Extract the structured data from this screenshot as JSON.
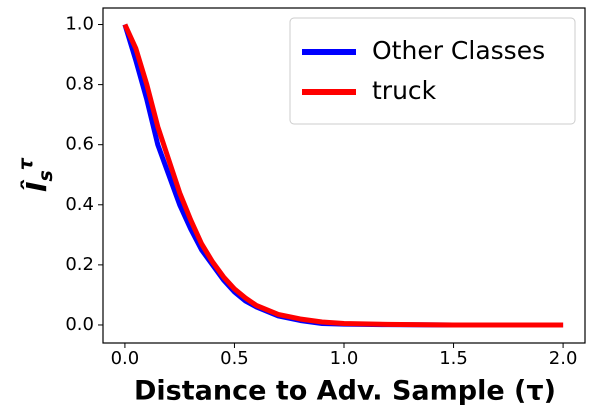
{
  "chart_data": {
    "type": "line",
    "xlabel": "Distance to Adv. Sample (τ)",
    "ylabel": {
      "base": "Î",
      "sub": "s",
      "sup": "τ"
    },
    "x": [
      0,
      0.05,
      0.1,
      0.15,
      0.2,
      0.25,
      0.3,
      0.35,
      0.4,
      0.45,
      0.5,
      0.55,
      0.6,
      0.7,
      0.8,
      0.9,
      1.0,
      1.2,
      1.5,
      2.0
    ],
    "series": [
      {
        "name": "Other Classes",
        "color": "#0000ff",
        "values": [
          1.0,
          0.88,
          0.75,
          0.6,
          0.5,
          0.4,
          0.32,
          0.25,
          0.2,
          0.15,
          0.11,
          0.08,
          0.06,
          0.03,
          0.015,
          0.005,
          0.003,
          0.001,
          0,
          0
        ]
      },
      {
        "name": "truck",
        "color": "#ff0000",
        "values": [
          1.0,
          0.92,
          0.8,
          0.66,
          0.55,
          0.44,
          0.35,
          0.27,
          0.21,
          0.16,
          0.12,
          0.09,
          0.065,
          0.035,
          0.02,
          0.01,
          0.005,
          0.002,
          0,
          0
        ]
      }
    ],
    "xlim": [
      -0.1,
      2.1
    ],
    "ylim": [
      -0.06,
      1.055
    ],
    "xticks": [
      {
        "value": 0,
        "label": "0.0"
      },
      {
        "value": 0.5,
        "label": "0.5"
      },
      {
        "value": 1,
        "label": "1.0"
      },
      {
        "value": 1.5,
        "label": "1.5"
      },
      {
        "value": 2,
        "label": "2.0"
      }
    ],
    "yticks": [
      {
        "value": 0,
        "label": "0.0"
      },
      {
        "value": 0.2,
        "label": "0.2"
      },
      {
        "value": 0.4,
        "label": "0.4"
      },
      {
        "value": 0.6,
        "label": "0.6"
      },
      {
        "value": 0.8,
        "label": "0.8"
      },
      {
        "value": 1,
        "label": "1.0"
      }
    ],
    "legend": "upper right",
    "grid": false
  }
}
